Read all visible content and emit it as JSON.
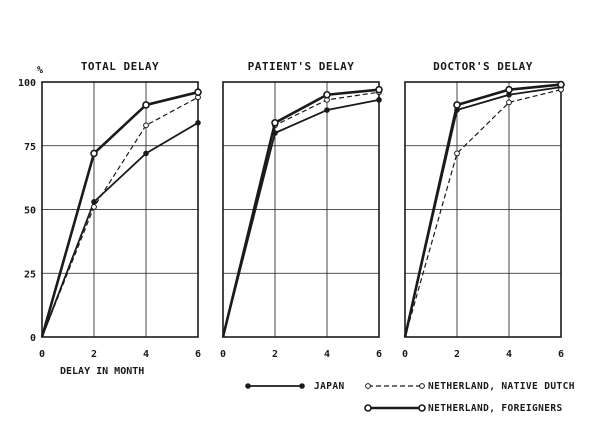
{
  "chart_data": {
    "type": "line",
    "unit_label": "%",
    "xlabel": "DELAY IN MONTH",
    "xlim": [
      0,
      6
    ],
    "ylim": [
      0,
      100
    ],
    "x_ticks": [
      "0",
      "2",
      "4",
      "6"
    ],
    "y_ticks": [
      "0",
      "25",
      "50",
      "75",
      "100"
    ],
    "grid": true,
    "legend_position": "bottom",
    "series_styles": [
      {
        "key": "japan",
        "label": "JAPAN",
        "dash": "none",
        "width": 1.8,
        "marker": "filled"
      },
      {
        "key": "native",
        "label": "NETHERLAND, NATIVE DUTCH",
        "dash": "5,3",
        "width": 1.2,
        "marker": "open"
      },
      {
        "key": "foreign",
        "label": "NETHERLAND, FOREIGNERS",
        "dash": "none",
        "width": 2.6,
        "marker": "double"
      }
    ],
    "panels": [
      {
        "title": "TOTAL DELAY",
        "series": [
          {
            "key": "japan",
            "x": [
              0,
              2,
              4,
              6
            ],
            "y": [
              0,
              53,
              72,
              84
            ]
          },
          {
            "key": "native",
            "x": [
              0,
              2,
              4,
              6
            ],
            "y": [
              0,
              51,
              83,
              94
            ]
          },
          {
            "key": "foreign",
            "x": [
              0,
              2,
              4,
              6
            ],
            "y": [
              0,
              72,
              91,
              96
            ]
          }
        ]
      },
      {
        "title": "PATIENT'S DELAY",
        "series": [
          {
            "key": "japan",
            "x": [
              0,
              2,
              4,
              6
            ],
            "y": [
              0,
              80,
              89,
              93
            ]
          },
          {
            "key": "native",
            "x": [
              0,
              2,
              4,
              6
            ],
            "y": [
              0,
              83,
              93,
              96
            ]
          },
          {
            "key": "foreign",
            "x": [
              0,
              2,
              4,
              6
            ],
            "y": [
              0,
              84,
              95,
              97
            ]
          }
        ]
      },
      {
        "title": "DOCTOR'S DELAY",
        "series": [
          {
            "key": "japan",
            "x": [
              0,
              2,
              4,
              6
            ],
            "y": [
              0,
              89,
              95,
              98
            ]
          },
          {
            "key": "native",
            "x": [
              0,
              2,
              4,
              6
            ],
            "y": [
              0,
              72,
              92,
              97
            ]
          },
          {
            "key": "foreign",
            "x": [
              0,
              2,
              4,
              6
            ],
            "y": [
              0,
              91,
              97,
              99
            ]
          }
        ]
      }
    ]
  }
}
